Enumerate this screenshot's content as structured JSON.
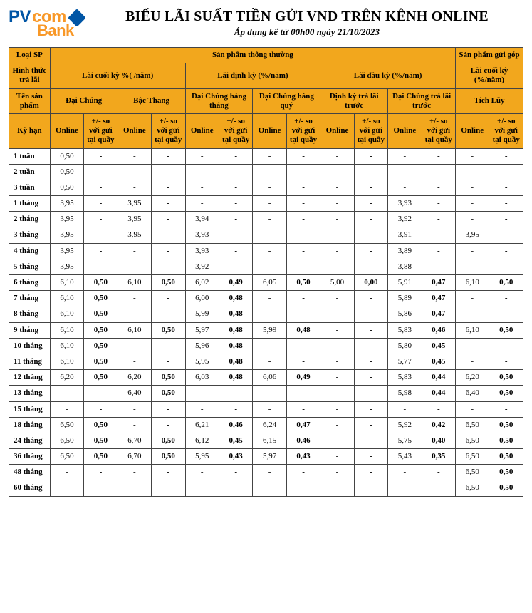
{
  "header": {
    "logo_pv": "PV",
    "logo_com": "com",
    "logo_bank": "Bank",
    "title": "BIỂU LÃI SUẤT TIỀN GỬI VND TRÊN KÊNH ONLINE",
    "subtitle": "Áp dụng kể từ 00h00 ngày 21/10/2023"
  },
  "colors": {
    "header_bg": "#f2a71d",
    "border": "#444444",
    "logo_blue": "#0055a5",
    "logo_orange": "#f89828"
  },
  "hdr": {
    "loai_sp": "Loại SP",
    "sp_thuong": "Sản phẩm thông thường",
    "sp_gop": "Sản phẩm gửi góp",
    "hinh_thuc": "Hình thức trả lãi",
    "lai_cuoi_ky_pct": "Lãi cuối kỳ %( /năm)",
    "lai_dinh_ky_pct": "Lãi định kỳ (%/năm)",
    "lai_dau_ky": "Lãi đầu kỳ (%/năm)",
    "lai_cuoi_ky_gop": "Lãi cuối kỳ (%/năm)",
    "ten_sp": "Tên sản phẩm",
    "dai_chung": "Đại Chúng",
    "bac_thang": "Bậc Thang",
    "dc_hang_thang": "Đại Chúng hàng tháng",
    "dc_hang_quy": "Đại Chúng hàng quý",
    "dinh_ky_tra_truoc": "Định kỳ trả lãi trước",
    "dc_tra_truoc": "Đại Chúng trả lãi trước",
    "tich_luy": "Tích Lũy",
    "ky_han": "Kỳ hạn",
    "online": "Online",
    "delta": "+/- so với gửi tại quầy"
  },
  "rows": [
    {
      "term": "1 tuần",
      "c": [
        "0,50",
        "-",
        "-",
        "-",
        "-",
        "-",
        "-",
        "-",
        "-",
        "-",
        "-",
        "-",
        "-",
        "-"
      ]
    },
    {
      "term": "2 tuần",
      "c": [
        "0,50",
        "-",
        "-",
        "-",
        "-",
        "-",
        "-",
        "-",
        "-",
        "-",
        "-",
        "-",
        "-",
        "-"
      ]
    },
    {
      "term": "3 tuần",
      "c": [
        "0,50",
        "-",
        "-",
        "-",
        "-",
        "-",
        "-",
        "-",
        "-",
        "-",
        "-",
        "-",
        "-",
        "-"
      ]
    },
    {
      "term": "1 tháng",
      "c": [
        "3,95",
        "-",
        "3,95",
        "-",
        "-",
        "-",
        "-",
        "-",
        "-",
        "-",
        "3,93",
        "-",
        "-",
        "-"
      ]
    },
    {
      "term": "2 tháng",
      "c": [
        "3,95",
        "-",
        "3,95",
        "-",
        "3,94",
        "-",
        "-",
        "-",
        "-",
        "-",
        "3,92",
        "-",
        "-",
        "-"
      ]
    },
    {
      "term": "3 tháng",
      "c": [
        "3,95",
        "-",
        "3,95",
        "-",
        "3,93",
        "-",
        "-",
        "-",
        "-",
        "-",
        "3,91",
        "-",
        "3,95",
        "-"
      ]
    },
    {
      "term": "4 tháng",
      "c": [
        "3,95",
        "-",
        "-",
        "-",
        "3,93",
        "-",
        "-",
        "-",
        "-",
        "-",
        "3,89",
        "-",
        "-",
        "-"
      ]
    },
    {
      "term": "5 tháng",
      "c": [
        "3,95",
        "-",
        "-",
        "-",
        "3,92",
        "-",
        "-",
        "-",
        "-",
        "-",
        "3,88",
        "-",
        "-",
        "-"
      ]
    },
    {
      "term": "6 tháng",
      "c": [
        "6,10",
        "0,50",
        "6,10",
        "0,50",
        "6,02",
        "0,49",
        "6,05",
        "0,50",
        "5,00",
        "0,00",
        "5,91",
        "0,47",
        "6,10",
        "0,50"
      ]
    },
    {
      "term": "7 tháng",
      "c": [
        "6,10",
        "0,50",
        "-",
        "-",
        "6,00",
        "0,48",
        "-",
        "-",
        "-",
        "-",
        "5,89",
        "0,47",
        "-",
        "-"
      ]
    },
    {
      "term": "8 tháng",
      "c": [
        "6,10",
        "0,50",
        "-",
        "-",
        "5,99",
        "0,48",
        "-",
        "-",
        "-",
        "-",
        "5,86",
        "0,47",
        "-",
        "-"
      ]
    },
    {
      "term": "9 tháng",
      "c": [
        "6,10",
        "0,50",
        "6,10",
        "0,50",
        "5,97",
        "0,48",
        "5,99",
        "0,48",
        "-",
        "-",
        "5,83",
        "0,46",
        "6,10",
        "0,50"
      ]
    },
    {
      "term": "10 tháng",
      "c": [
        "6,10",
        "0,50",
        "-",
        "-",
        "5,96",
        "0,48",
        "-",
        "-",
        "-",
        "-",
        "5,80",
        "0,45",
        "-",
        "-"
      ]
    },
    {
      "term": "11 tháng",
      "c": [
        "6,10",
        "0,50",
        "-",
        "-",
        "5,95",
        "0,48",
        "-",
        "-",
        "-",
        "-",
        "5,77",
        "0,45",
        "-",
        "-"
      ]
    },
    {
      "term": "12 tháng",
      "c": [
        "6,20",
        "0,50",
        "6,20",
        "0,50",
        "6,03",
        "0,48",
        "6,06",
        "0,49",
        "-",
        "-",
        "5,83",
        "0,44",
        "6,20",
        "0,50"
      ]
    },
    {
      "term": "13 tháng",
      "c": [
        "-",
        "-",
        "6,40",
        "0,50",
        "-",
        "-",
        "-",
        "-",
        "-",
        "-",
        "5,98",
        "0,44",
        "6,40",
        "0,50"
      ]
    },
    {
      "term": "15 tháng",
      "c": [
        "-",
        "-",
        "-",
        "-",
        "-",
        "-",
        "-",
        "-",
        "-",
        "-",
        "-",
        "-",
        "-",
        "-"
      ]
    },
    {
      "term": "18 tháng",
      "c": [
        "6,50",
        "0,50",
        "-",
        "-",
        "6,21",
        "0,46",
        "6,24",
        "0,47",
        "-",
        "-",
        "5,92",
        "0,42",
        "6,50",
        "0,50"
      ]
    },
    {
      "term": "24 tháng",
      "c": [
        "6,50",
        "0,50",
        "6,70",
        "0,50",
        "6,12",
        "0,45",
        "6,15",
        "0,46",
        "-",
        "-",
        "5,75",
        "0,40",
        "6,50",
        "0,50"
      ]
    },
    {
      "term": "36 tháng",
      "c": [
        "6,50",
        "0,50",
        "6,70",
        "0,50",
        "5,95",
        "0,43",
        "5,97",
        "0,43",
        "-",
        "-",
        "5,43",
        "0,35",
        "6,50",
        "0,50"
      ]
    },
    {
      "term": "48 tháng",
      "c": [
        "-",
        "-",
        "-",
        "-",
        "-",
        "-",
        "-",
        "-",
        "-",
        "-",
        "-",
        "-",
        "6,50",
        "0,50"
      ]
    },
    {
      "term": "60 tháng",
      "c": [
        "-",
        "-",
        "-",
        "-",
        "-",
        "-",
        "-",
        "-",
        "-",
        "-",
        "-",
        "-",
        "6,50",
        "0,50"
      ]
    }
  ]
}
